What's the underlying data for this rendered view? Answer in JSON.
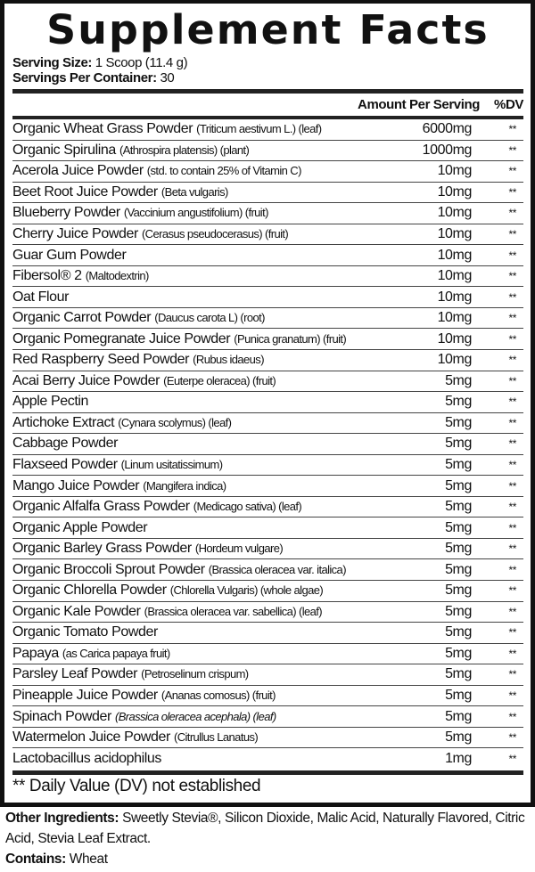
{
  "title": "Supplement Facts",
  "serving_size_label": "Serving Size:",
  "serving_size": "1 Scoop (11.4 g)",
  "servings_label": "Servings Per Container:",
  "servings": "30",
  "header": {
    "amount": "Amount Per Serving",
    "dv": "%DV"
  },
  "ingredients": [
    {
      "name": "Organic Wheat Grass Powder",
      "sub": "(Triticum aestivum L.) (leaf)",
      "amount": "6000mg",
      "dv": "**"
    },
    {
      "name": "Organic Spirulina",
      "sub": "(Athrospira platensis) (plant)",
      "amount": "1000mg",
      "dv": "**"
    },
    {
      "name": "Acerola Juice Powder",
      "sub": "(std. to contain 25% of Vitamin C)",
      "amount": "10mg",
      "dv": "**"
    },
    {
      "name": "Beet Root Juice Powder",
      "sub": "(Beta vulgaris)",
      "amount": "10mg",
      "dv": "**"
    },
    {
      "name": "Blueberry Powder",
      "sub": "(Vaccinium angustifolium) (fruit)",
      "amount": "10mg",
      "dv": "**"
    },
    {
      "name": "Cherry Juice Powder",
      "sub": "(Cerasus pseudocerasus) (fruit)",
      "amount": "10mg",
      "dv": "**"
    },
    {
      "name": "Guar Gum Powder",
      "sub": "",
      "amount": "10mg",
      "dv": "**"
    },
    {
      "name": "Fibersol® 2",
      "sub": "(Maltodextrin)",
      "amount": "10mg",
      "dv": "**"
    },
    {
      "name": "Oat Flour",
      "sub": "",
      "amount": "10mg",
      "dv": "**"
    },
    {
      "name": "Organic Carrot Powder",
      "sub": "(Daucus carota L) (root)",
      "amount": "10mg",
      "dv": "**"
    },
    {
      "name": "Organic Pomegranate Juice Powder",
      "sub": "(Punica granatum) (fruit)",
      "amount": "10mg",
      "dv": "**"
    },
    {
      "name": "Red Raspberry Seed Powder",
      "sub": "(Rubus idaeus)",
      "amount": "10mg",
      "dv": "**"
    },
    {
      "name": "Acai Berry Juice Powder",
      "sub": "(Euterpe oleracea) (fruit)",
      "amount": "5mg",
      "dv": "**"
    },
    {
      "name": "Apple Pectin",
      "sub": "",
      "amount": "5mg",
      "dv": "**"
    },
    {
      "name": "Artichoke Extract",
      "sub": "(Cynara scolymus) (leaf)",
      "amount": "5mg",
      "dv": "**"
    },
    {
      "name": "Cabbage Powder",
      "sub": "",
      "amount": "5mg",
      "dv": "**"
    },
    {
      "name": "Flaxseed Powder",
      "sub": "(Linum usitatissimum)",
      "amount": "5mg",
      "dv": "**"
    },
    {
      "name": "Mango Juice Powder",
      "sub": "(Mangifera indica)",
      "amount": "5mg",
      "dv": "**"
    },
    {
      "name": "Organic Alfalfa Grass Powder",
      "sub": "(Medicago sativa) (leaf)",
      "amount": "5mg",
      "dv": "**"
    },
    {
      "name": "Organic Apple Powder",
      "sub": "",
      "amount": "5mg",
      "dv": "**"
    },
    {
      "name": "Organic Barley Grass Powder",
      "sub": "(Hordeum vulgare)",
      "amount": "5mg",
      "dv": "**"
    },
    {
      "name": "Organic Broccoli Sprout Powder",
      "sub": "(Brassica oleracea var. italica)",
      "amount": "5mg",
      "dv": "**"
    },
    {
      "name": "Organic Chlorella Powder",
      "sub": "(Chlorella Vulgaris) (whole algae)",
      "amount": "5mg",
      "dv": "**"
    },
    {
      "name": "Organic Kale Powder",
      "sub": "(Brassica oleracea var. sabellica) (leaf)",
      "amount": "5mg",
      "dv": "**"
    },
    {
      "name": "Organic Tomato Powder",
      "sub": "",
      "amount": "5mg",
      "dv": "**"
    },
    {
      "name": "Papaya",
      "sub": "(as Carica papaya fruit)",
      "amount": "5mg",
      "dv": "**"
    },
    {
      "name": "Parsley Leaf Powder",
      "sub": "(Petroselinum crispum)",
      "amount": "5mg",
      "dv": "**"
    },
    {
      "name": "Pineapple Juice Powder",
      "sub": "(Ananas comosus) (fruit)",
      "amount": "5mg",
      "dv": "**"
    },
    {
      "name": "Spinach Powder",
      "sub": "(Brassica oleracea acephala) (leaf)",
      "italic": true,
      "amount": "5mg",
      "dv": "**"
    },
    {
      "name": "Watermelon Juice Powder",
      "sub": "(Citrullus Lanatus)",
      "amount": "5mg",
      "dv": "**"
    },
    {
      "name": "Lactobacillus acidophilus",
      "sub": "",
      "amount": "1mg",
      "dv": "**"
    }
  ],
  "footnote": "** Daily Value (DV) not established",
  "other_label": "Other Ingredients:",
  "other": "Sweetly Stevia®, Silicon Dioxide, Malic Acid, Naturally Flavored, Citric Acid, Stevia Leaf Extract.",
  "contains_label": "Contains:",
  "contains": "Wheat"
}
